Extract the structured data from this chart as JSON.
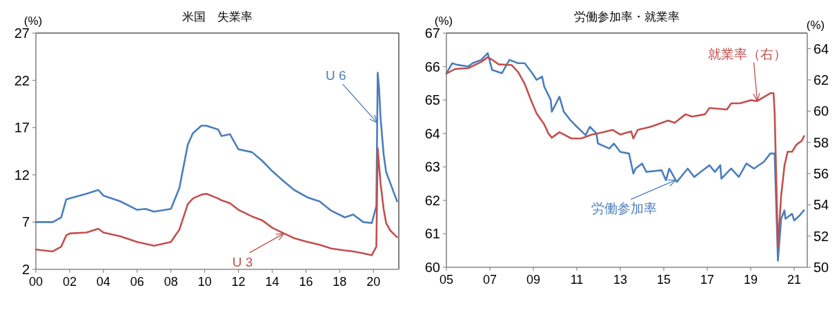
{
  "chart_data": [
    {
      "type": "line",
      "title": "米国　失業率",
      "ylabel": "(%)",
      "xlim": [
        2000,
        2021.5
      ],
      "xticks": [
        {
          "value": 2000,
          "label": "00"
        },
        {
          "value": 2002,
          "label": "02"
        },
        {
          "value": 2004,
          "label": "04"
        },
        {
          "value": 2006,
          "label": "06"
        },
        {
          "value": 2008,
          "label": "08"
        },
        {
          "value": 2010,
          "label": "10"
        },
        {
          "value": 2012,
          "label": "12"
        },
        {
          "value": 2014,
          "label": "14"
        },
        {
          "value": 2016,
          "label": "16"
        },
        {
          "value": 2018,
          "label": "18"
        },
        {
          "value": 2020,
          "label": "20"
        }
      ],
      "ylim": [
        2,
        27
      ],
      "yticks": [
        2,
        7,
        12,
        17,
        22,
        27
      ],
      "x": [
        2000,
        2001,
        2001.5,
        2001.8,
        2002,
        2003,
        2003.7,
        2004,
        2005,
        2006,
        2006.5,
        2007,
        2008,
        2008.5,
        2009,
        2009.3,
        2009.8,
        2010.1,
        2010.8,
        2011,
        2011.5,
        2012,
        2012.8,
        2013.4,
        2014,
        2014.7,
        2015.3,
        2016.1,
        2016.8,
        2017.5,
        2018.3,
        2018.8,
        2019.4,
        2019.9,
        2020.17,
        2020.25,
        2020.33,
        2020.42,
        2020.6,
        2020.75,
        2021,
        2021.4
      ],
      "series": [
        {
          "name": "U 6",
          "color": "#4a7ebb",
          "values": [
            7.0,
            7.0,
            7.5,
            9.4,
            9.5,
            10.0,
            10.4,
            9.8,
            9.2,
            8.3,
            8.4,
            8.1,
            8.4,
            10.6,
            15.2,
            16.4,
            17.2,
            17.2,
            16.8,
            16.1,
            16.3,
            14.7,
            14.4,
            13.5,
            12.4,
            11.3,
            10.4,
            9.6,
            9.2,
            8.2,
            7.5,
            7.8,
            7.0,
            6.9,
            8.7,
            22.8,
            21.2,
            18.0,
            14.2,
            12.3,
            11.1,
            9.2
          ]
        },
        {
          "name": "U 3",
          "color": "#c0504d",
          "values": [
            4.1,
            3.9,
            4.4,
            5.6,
            5.8,
            5.9,
            6.3,
            5.9,
            5.5,
            4.9,
            4.7,
            4.5,
            4.9,
            6.2,
            8.9,
            9.5,
            9.9,
            10.0,
            9.5,
            9.3,
            9.0,
            8.3,
            7.6,
            7.2,
            6.4,
            5.8,
            5.3,
            4.9,
            4.6,
            4.2,
            4.0,
            3.9,
            3.7,
            3.5,
            4.4,
            14.8,
            13.0,
            11.1,
            8.4,
            6.9,
            6.1,
            5.4
          ]
        }
      ]
    },
    {
      "type": "line",
      "title": "労働参加率・就業率",
      "ylabel": "(%)",
      "y2label": "(%)",
      "xlim": [
        2005,
        2021.6
      ],
      "xticks": [
        {
          "value": 2005,
          "label": "05"
        },
        {
          "value": 2007,
          "label": "07"
        },
        {
          "value": 2009,
          "label": "09"
        },
        {
          "value": 2011,
          "label": "11"
        },
        {
          "value": 2013,
          "label": "13"
        },
        {
          "value": 2015,
          "label": "15"
        },
        {
          "value": 2017,
          "label": "17"
        },
        {
          "value": 2019,
          "label": "19"
        },
        {
          "value": 2021,
          "label": "21"
        }
      ],
      "ylim": [
        60,
        67
      ],
      "yticks": [
        60,
        61,
        62,
        63,
        64,
        65,
        66,
        67
      ],
      "y2lim": [
        50,
        65
      ],
      "y2ticks": [
        50,
        52,
        54,
        56,
        58,
        60,
        62,
        64
      ],
      "series": [
        {
          "name": "労働参加率",
          "color": "#4a7ebb",
          "x": [
            2005,
            2005.27,
            2005.5,
            2006,
            2006.2,
            2006.6,
            2006.9,
            2007.1,
            2007.55,
            2007.9,
            2008.3,
            2008.6,
            2008.95,
            2009.15,
            2009.4,
            2009.5,
            2009.8,
            2009.85,
            2010.2,
            2010.4,
            2010.7,
            2011,
            2011.4,
            2011.6,
            2011.9,
            2011.97,
            2012.5,
            2012.7,
            2013,
            2013.4,
            2013.6,
            2013.7,
            2014,
            2014.2,
            2014.9,
            2015.1,
            2015.25,
            2015.6,
            2016.1,
            2016.4,
            2016.7,
            2017.1,
            2017.35,
            2017.6,
            2017.65,
            2018.1,
            2018.45,
            2018.8,
            2019.15,
            2019.6,
            2019.9,
            2020.1,
            2020.25,
            2020.4,
            2020.55,
            2020.6,
            2020.9,
            2021,
            2021.25,
            2021.45
          ],
          "values": [
            65.8,
            66.1,
            66.05,
            66.0,
            66.1,
            66.2,
            66.4,
            65.9,
            65.8,
            66.2,
            66.1,
            66.1,
            65.8,
            65.6,
            65.7,
            65.4,
            65.0,
            64.65,
            65.1,
            64.65,
            64.4,
            64.2,
            63.95,
            64.2,
            64.0,
            63.7,
            63.55,
            63.7,
            63.45,
            63.4,
            62.8,
            62.95,
            63.1,
            62.85,
            62.9,
            62.6,
            62.95,
            62.55,
            62.95,
            62.7,
            62.85,
            63.05,
            62.85,
            63.05,
            62.65,
            62.95,
            62.7,
            63.1,
            62.95,
            63.15,
            63.4,
            63.4,
            60.2,
            61.45,
            61.7,
            61.45,
            61.6,
            61.4,
            61.55,
            61.7
          ]
        },
        {
          "name": "就業率（右）",
          "color": "#c0504d",
          "axis": "y2",
          "x": [
            2005,
            2005.4,
            2006,
            2006.6,
            2006.9,
            2007.1,
            2007.4,
            2008,
            2008.3,
            2008.6,
            2008.95,
            2009.15,
            2009.5,
            2009.7,
            2009.85,
            2010.2,
            2010.75,
            2011.2,
            2011.7,
            2011.9,
            2012.65,
            2013,
            2013.5,
            2013.6,
            2013.8,
            2014.4,
            2015.2,
            2015.5,
            2016,
            2016.3,
            2016.9,
            2017.1,
            2017.9,
            2018.1,
            2018.5,
            2019,
            2019.3,
            2019.9,
            2020.05,
            2020.1,
            2020.25,
            2020.4,
            2020.55,
            2020.7,
            2020.9,
            2021.1,
            2021.35,
            2021.45
          ],
          "values": [
            62.4,
            62.7,
            62.75,
            63.15,
            63.45,
            63.3,
            63.0,
            62.95,
            62.5,
            61.75,
            60.5,
            59.85,
            59.15,
            58.55,
            58.3,
            58.65,
            58.25,
            58.25,
            58.5,
            58.55,
            58.8,
            58.5,
            58.7,
            58.25,
            58.8,
            59.0,
            59.4,
            59.25,
            59.8,
            59.65,
            59.8,
            60.2,
            60.1,
            60.5,
            60.5,
            60.7,
            60.65,
            61.15,
            61.15,
            59.9,
            51.3,
            54.6,
            56.5,
            57.4,
            57.4,
            57.85,
            58.1,
            58.4
          ]
        }
      ]
    }
  ]
}
